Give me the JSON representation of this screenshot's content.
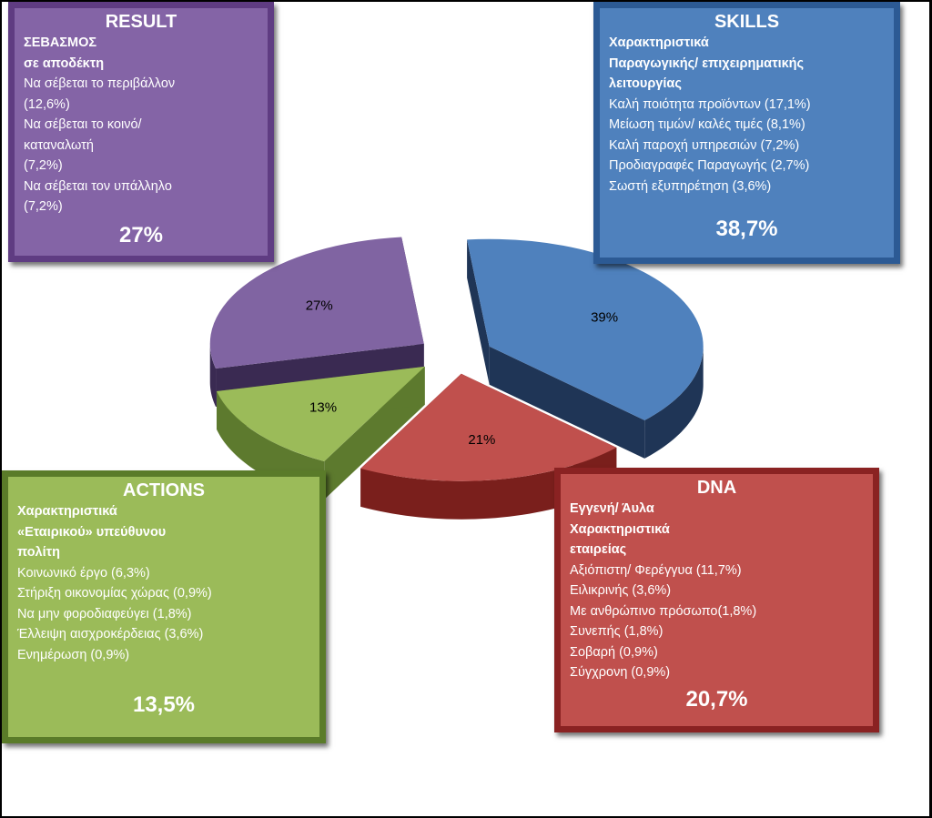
{
  "chart_data": {
    "type": "pie",
    "title": "",
    "style": "exploded-3d",
    "slices": [
      {
        "key": "skills",
        "label": "39%",
        "value": 38.7,
        "color": "#4f81bd",
        "side_color": "#1f3556"
      },
      {
        "key": "dna",
        "label": "21%",
        "value": 20.7,
        "color": "#c0504d",
        "side_color": "#7a1f1c"
      },
      {
        "key": "actions",
        "label": "13%",
        "value": 13.5,
        "color": "#9bbb59",
        "side_color": "#5d7a2e"
      },
      {
        "key": "result",
        "label": "27%",
        "value": 27.0,
        "color": "#8064a2",
        "side_color": "#3a2a52"
      }
    ]
  },
  "boxes": {
    "result": {
      "title": "RESULT",
      "lines": [
        {
          "text": "ΣΕΒΑΣΜΟΣ",
          "bold": true
        },
        {
          "text": "σε αποδέκτη",
          "bold": true
        },
        {
          "text": "Να σέβεται το περιβάλλον",
          "bold": false
        },
        {
          "text": "(12,6%)",
          "bold": false
        },
        {
          "text": "Να σέβεται το κοινό/",
          "bold": false
        },
        {
          "text": "καταναλωτή",
          "bold": false
        },
        {
          "text": "(7,2%)",
          "bold": false
        },
        {
          "text": "Να σέβεται τον υπάλληλο",
          "bold": false
        },
        {
          "text": "(7,2%)",
          "bold": false
        }
      ],
      "percent": "27%"
    },
    "skills": {
      "title": "SKILLS",
      "lines": [
        {
          "text": "Χαρακτηριστικά",
          "bold": true
        },
        {
          "text": "Παραγωγικής/ επιχειρηματικής",
          "bold": true
        },
        {
          "text": "λειτουργίας",
          "bold": true
        },
        {
          "text": "Καλή ποιότητα προϊόντων (17,1%)",
          "bold": false
        },
        {
          "text": "Μείωση τιμών/ καλές τιμές (8,1%)",
          "bold": false
        },
        {
          "text": "Καλή παροχή υπηρεσιών (7,2%)",
          "bold": false
        },
        {
          "text": "Προδιαγραφές Παραγωγής (2,7%)",
          "bold": false
        },
        {
          "text": "Σωστή εξυπηρέτηση (3,6%)",
          "bold": false
        }
      ],
      "percent": "38,7%"
    },
    "actions": {
      "title": "ACTIONS",
      "lines": [
        {
          "text": "Χαρακτηριστικά",
          "bold": true
        },
        {
          "text": "«Εταιρικού» υπεύθυνου",
          "bold": true
        },
        {
          "text": "πολίτη",
          "bold": true
        },
        {
          "text": "Κοινωνικό έργο (6,3%)",
          "bold": false
        },
        {
          "text": "Στήριξη οικονομίας χώρας (0,9%)",
          "bold": false
        },
        {
          "text": "Να μην φοροδιαφεύγει (1,8%)",
          "bold": false
        },
        {
          "text": "Έλλειψη αισχροκέρδειας (3,6%)",
          "bold": false
        },
        {
          "text": "Ενημέρωση (0,9%)",
          "bold": false
        }
      ],
      "percent": "13,5%"
    },
    "dna": {
      "title": "DNA",
      "lines": [
        {
          "text": "Εγγενή/ Άυλα",
          "bold": true
        },
        {
          "text": "Χαρακτηριστικά",
          "bold": true
        },
        {
          "text": "εταιρείας",
          "bold": true
        },
        {
          "text": "Αξιόπιστη/ Φερέγγυα (11,7%)",
          "bold": false
        },
        {
          "text": "Ειλικρινής (3,6%)",
          "bold": false
        },
        {
          "text": "Με ανθρώπινο πρόσωπο(1,8%)",
          "bold": false
        },
        {
          "text": "Συνεπής (1,8%)",
          "bold": false
        },
        {
          "text": "Σοβαρή (0,9%)",
          "bold": false
        },
        {
          "text": "Σύγχρονη (0,9%)",
          "bold": false
        }
      ],
      "percent": "20,7%"
    }
  }
}
